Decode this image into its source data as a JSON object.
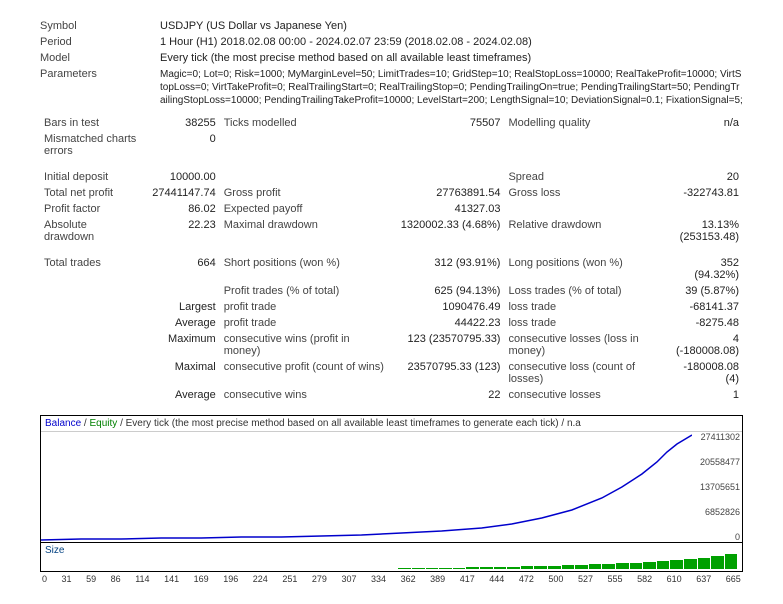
{
  "header": {
    "symbol_label": "Symbol",
    "symbol_value": "USDJPY (US Dollar vs Japanese Yen)",
    "period_label": "Period",
    "period_value": "1 Hour (H1) 2018.02.08 00:00 - 2024.02.07 23:59 (2018.02.08 - 2024.02.08)",
    "model_label": "Model",
    "model_value": "Every tick (the most precise method based on all available least timeframes)",
    "parameters_label": "Parameters",
    "parameters_value": "Magic=0; Lot=0; Risk=1000; MyMarginLevel=50; LimitTrades=10; GridStep=10; RealStopLoss=10000; RealTakeProfit=10000; VirtStopLoss=0; VirtTakeProfit=0; RealTrailingStart=0; RealTrailingStop=0; PendingTrailingOn=true; PendingTrailingStart=50; PendingTrailingStopLoss=10000; PendingTrailingTakeProfit=10000; LevelStart=200; LengthSignal=10; DeviationSignal=0.1; FixationSignal=5;"
  },
  "stats": {
    "bars_in_test_label": "Bars in test",
    "bars_in_test": "38255",
    "ticks_modelled_label": "Ticks modelled",
    "ticks_modelled": "75507",
    "modelling_quality_label": "Modelling quality",
    "modelling_quality": "n/a",
    "mismatched_label": "Mismatched charts errors",
    "mismatched": "0",
    "initial_deposit_label": "Initial deposit",
    "initial_deposit": "10000.00",
    "spread_label": "Spread",
    "spread": "20",
    "total_net_profit_label": "Total net profit",
    "total_net_profit": "27441147.74",
    "gross_profit_label": "Gross profit",
    "gross_profit": "27763891.54",
    "gross_loss_label": "Gross loss",
    "gross_loss": "-322743.81",
    "profit_factor_label": "Profit factor",
    "profit_factor": "86.02",
    "expected_payoff_label": "Expected payoff",
    "expected_payoff": "41327.03",
    "abs_dd_label": "Absolute drawdown",
    "abs_dd": "22.23",
    "max_dd_label": "Maximal drawdown",
    "max_dd": "1320002.33 (4.68%)",
    "rel_dd_label": "Relative drawdown",
    "rel_dd": "13.13% (253153.48)",
    "total_trades_label": "Total trades",
    "total_trades": "664",
    "short_pos_label": "Short positions (won %)",
    "short_pos": "312 (93.91%)",
    "long_pos_label": "Long positions (won %)",
    "long_pos": "352 (94.32%)",
    "profit_trades_label": "Profit trades (% of total)",
    "profit_trades": "625 (94.13%)",
    "loss_trades_label": "Loss trades (% of total)",
    "loss_trades": "39 (5.87%)",
    "largest_label": "Largest",
    "largest_profit_label": "profit trade",
    "largest_profit": "1090476.49",
    "largest_loss_label": "loss trade",
    "largest_loss": "-68141.37",
    "average_label": "Average",
    "avg_profit_label": "profit trade",
    "avg_profit": "44422.23",
    "avg_loss_label": "loss trade",
    "avg_loss": "-8275.48",
    "maximum_label": "Maximum",
    "max_cons_wins_label": "consecutive wins (profit in money)",
    "max_cons_wins": "123 (23570795.33)",
    "max_cons_losses_label": "consecutive losses (loss in money)",
    "max_cons_losses": "4 (-180008.08)",
    "maximal_label": "Maximal",
    "max_cons_profit_label": "consecutive profit (count of wins)",
    "max_cons_profit": "23570795.33 (123)",
    "max_cons_loss_label": "consecutive loss (count of losses)",
    "max_cons_loss": "-180008.08 (4)",
    "avg_cons_wins_label": "consecutive wins",
    "avg_cons_wins": "22",
    "avg_cons_losses_label": "consecutive losses",
    "avg_cons_losses": "1"
  },
  "chart": {
    "header_balance": "Balance",
    "header_equity": "Equity",
    "header_text": " / Every tick (the most precise method based on all available least timeframes to generate each tick) / n.a",
    "y_labels": [
      "27411302",
      "20558477",
      "13705651",
      "6852826",
      "0"
    ],
    "size_label": "Size",
    "x_ticks": [
      "0",
      "31",
      "59",
      "86",
      "114",
      "141",
      "169",
      "196",
      "224",
      "251",
      "279",
      "307",
      "334",
      "362",
      "389",
      "417",
      "444",
      "472",
      "500",
      "527",
      "555",
      "582",
      "610",
      "637",
      "665"
    ],
    "curve_color": "#0000cc",
    "bar_color": "#00a000",
    "curve_points": [
      [
        0,
        108
      ],
      [
        40,
        107
      ],
      [
        80,
        107
      ],
      [
        120,
        106
      ],
      [
        160,
        106
      ],
      [
        200,
        105
      ],
      [
        240,
        105
      ],
      [
        280,
        104
      ],
      [
        320,
        103
      ],
      [
        360,
        101
      ],
      [
        400,
        99
      ],
      [
        440,
        96
      ],
      [
        470,
        92
      ],
      [
        500,
        86
      ],
      [
        530,
        78
      ],
      [
        560,
        66
      ],
      [
        580,
        55
      ],
      [
        600,
        42
      ],
      [
        615,
        30
      ],
      [
        625,
        20
      ],
      [
        635,
        12
      ],
      [
        645,
        6
      ],
      [
        650,
        3
      ]
    ],
    "bar_heights": [
      0,
      0,
      0,
      0,
      0,
      0,
      0,
      0,
      0,
      0,
      0,
      0,
      0,
      0,
      0,
      0,
      0,
      0,
      0,
      0,
      0,
      0,
      0,
      0,
      0,
      0,
      1,
      1,
      1,
      1,
      1,
      2,
      2,
      2,
      2,
      3,
      3,
      3,
      4,
      4,
      5,
      5,
      6,
      6,
      7,
      8,
      9,
      10,
      11,
      13,
      15
    ]
  }
}
